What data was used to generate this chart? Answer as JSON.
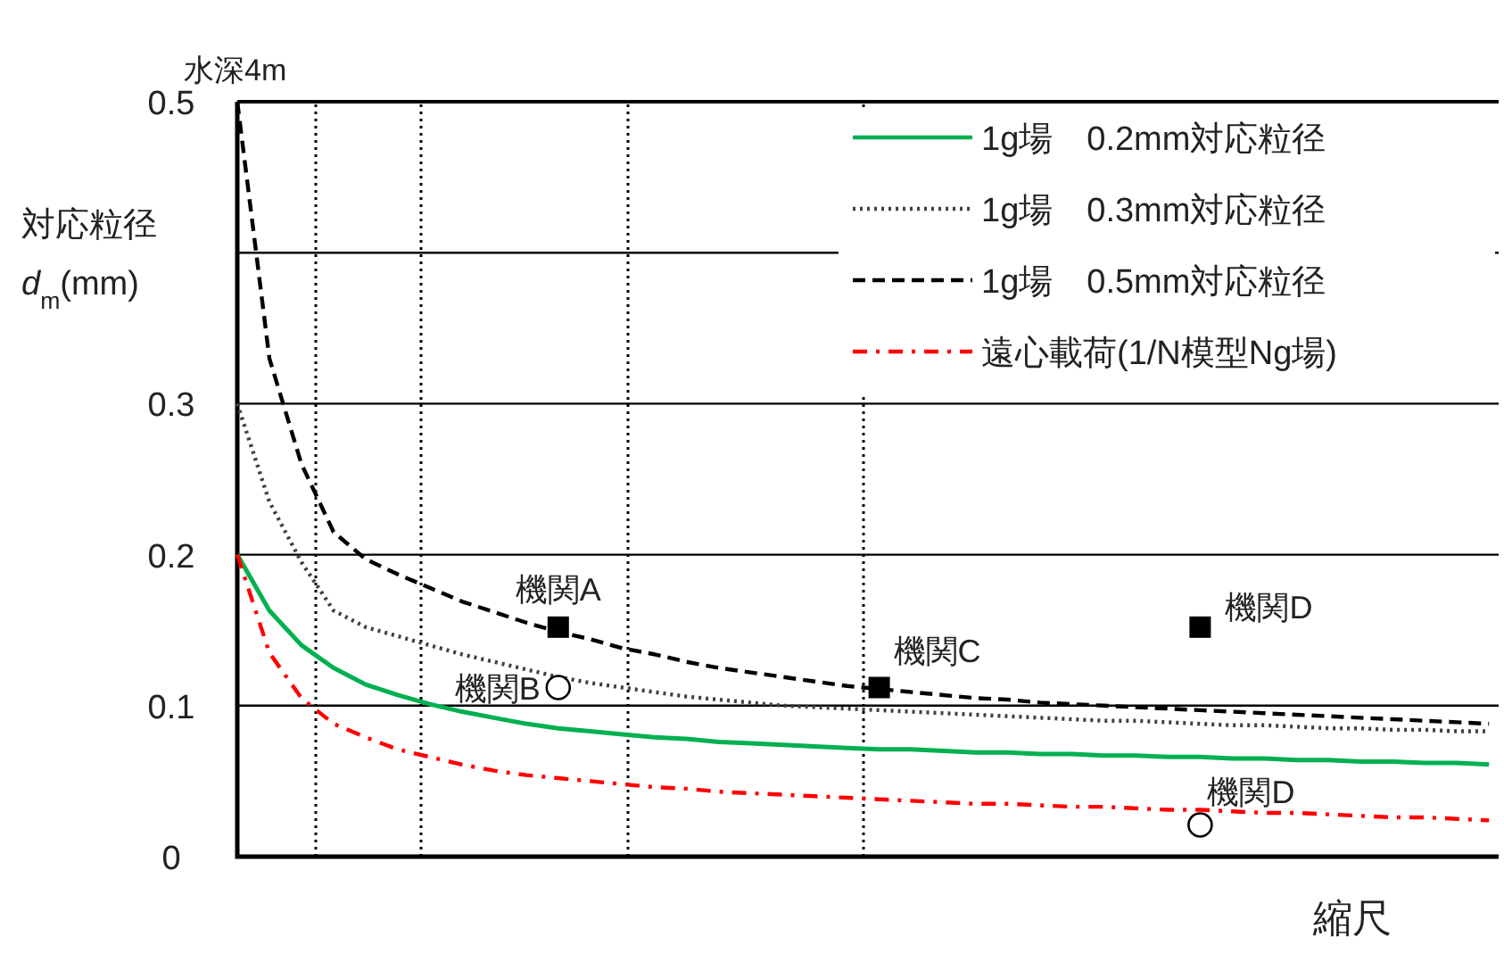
{
  "chart_data": {
    "type": "line",
    "xlabel": "縮尺",
    "ylabel": "対応粒径 *d*$_{m}$(mm)",
    "categories": [
      null,
      null,
      null,
      null,
      null,
      null,
      null,
      null,
      null,
      null,
      null,
      null,
      null,
      null,
      null,
      null,
      null,
      null,
      null,
      null,
      null,
      null,
      null,
      null,
      null,
      null,
      null,
      null,
      null,
      null,
      null,
      null,
      null,
      null,
      null,
      null,
      null,
      null,
      null,
      null
    ],
    "ylim": [
      0,
      0.5
    ],
    "yticks": [
      0,
      0.1,
      0.2,
      0.3,
      {
        "value": 0.4,
        "label": null
      },
      0.5
    ],
    "tick_labels": "y",
    "grid": "y",
    "legend": "top right",
    "series": [
      {
        "name": "1g場　0.2mm対応粒径",
        "color": "#00b050",
        "line_style": "solid",
        "values": [
          0.2,
          0.163,
          0.14,
          0.125,
          0.114,
          0.107,
          0.101,
          0.096,
          0.092,
          0.088,
          0.085,
          0.083,
          0.081,
          0.079,
          0.078,
          0.076,
          0.075,
          0.074,
          0.073,
          0.072,
          0.071,
          0.071,
          0.07,
          0.069,
          0.069,
          0.068,
          0.068,
          0.067,
          0.067,
          0.066,
          0.066,
          0.065,
          0.065,
          0.064,
          0.064,
          0.063,
          0.063,
          0.062,
          0.062,
          0.061
        ]
      },
      {
        "name": "1g場　0.3mm対応粒径",
        "color": "#404040",
        "line_style": "dotted",
        "values": [
          0.3,
          0.235,
          0.195,
          0.163,
          0.152,
          0.146,
          0.14,
          0.134,
          0.129,
          0.124,
          0.119,
          0.115,
          0.112,
          0.109,
          0.106,
          0.104,
          0.102,
          0.1,
          0.099,
          0.098,
          0.097,
          0.096,
          0.095,
          0.094,
          0.093,
          0.092,
          0.091,
          0.09,
          0.09,
          0.089,
          0.088,
          0.087,
          0.087,
          0.086,
          0.085,
          0.085,
          0.084,
          0.084,
          0.083,
          0.083
        ]
      },
      {
        "name": "1g場　0.5mm対応粒径",
        "color": "#000000",
        "line_style": "dashed",
        "values": [
          0.5,
          0.33,
          0.26,
          0.215,
          0.197,
          0.187,
          0.178,
          0.169,
          0.162,
          0.155,
          0.149,
          0.144,
          0.138,
          0.134,
          0.129,
          0.125,
          0.122,
          0.119,
          0.116,
          0.113,
          0.111,
          0.109,
          0.107,
          0.105,
          0.104,
          0.102,
          0.101,
          0.1,
          0.099,
          0.098,
          0.097,
          0.096,
          0.095,
          0.094,
          0.093,
          0.092,
          0.091,
          0.09,
          0.089,
          0.088
        ]
      },
      {
        "name": "遠心載荷(1/N模型Ng場)",
        "color": "#ff0000",
        "line_style": "dashdot",
        "values": [
          0.2,
          0.135,
          0.105,
          0.088,
          0.079,
          0.071,
          0.066,
          0.061,
          0.057,
          0.054,
          0.052,
          0.05,
          0.048,
          0.046,
          0.045,
          0.043,
          0.042,
          0.041,
          0.04,
          0.039,
          0.038,
          0.037,
          0.036,
          0.035,
          0.035,
          0.034,
          0.033,
          0.033,
          0.032,
          0.031,
          0.031,
          0.03,
          0.029,
          0.029,
          0.028,
          0.027,
          0.026,
          0.026,
          0.025,
          0.024
        ]
      },
      {
        "type": "scatter",
        "marker": "square",
        "color": "#000000",
        "values": [
          null,
          null,
          null,
          null,
          null,
          null,
          null,
          null,
          null,
          null,
          0.152,
          null,
          null,
          null,
          null,
          null,
          null,
          null,
          null,
          null,
          0.112,
          null,
          null,
          null,
          null,
          null,
          null,
          null,
          null,
          null,
          0.152,
          null,
          null,
          null,
          null,
          null,
          null,
          null,
          null,
          null
        ],
        "value_labels": [
          null,
          null,
          null,
          null,
          null,
          null,
          null,
          null,
          null,
          null,
          "機関A",
          null,
          null,
          null,
          null,
          null,
          null,
          null,
          null,
          null,
          "機関C",
          null,
          null,
          null,
          null,
          null,
          null,
          null,
          null,
          null,
          "機関D",
          null,
          null,
          null,
          null,
          null,
          null,
          null,
          null,
          null
        ]
      },
      {
        "type": "scatter",
        "marker": "circle",
        "color": "#000000",
        "values": [
          null,
          null,
          null,
          null,
          null,
          null,
          null,
          null,
          null,
          null,
          0.112,
          null,
          null,
          null,
          null,
          null,
          null,
          null,
          null,
          null,
          null,
          null,
          null,
          null,
          null,
          null,
          null,
          null,
          null,
          null,
          0.021,
          null,
          null,
          null,
          null,
          null,
          null,
          null,
          null,
          null
        ],
        "value_labels": [
          null,
          null,
          null,
          null,
          null,
          null,
          null,
          null,
          null,
          null,
          "機関B",
          null,
          null,
          null,
          null,
          null,
          null,
          null,
          null,
          null,
          null,
          null,
          null,
          null,
          null,
          null,
          null,
          null,
          null,
          null,
          "機関D",
          null,
          null,
          null,
          null,
          null,
          null,
          null,
          null,
          null
        ]
      }
    ],
    "annotations": [
      "水深4m"
    ]
  }
}
